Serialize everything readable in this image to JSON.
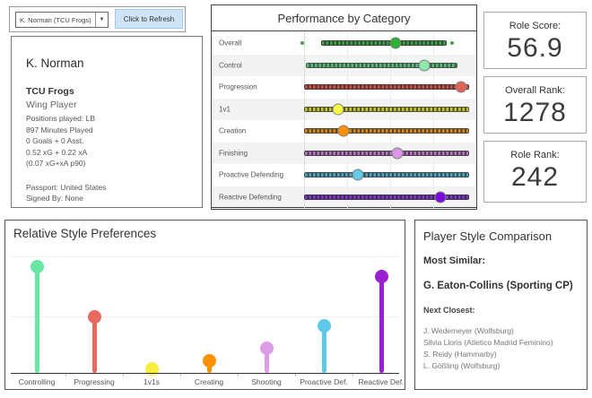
{
  "controls": {
    "player_select_value": "K. Norman (TCU Frogs)",
    "refresh_label": "Click to Refresh"
  },
  "player_card": {
    "name": "K. Norman",
    "team": "TCU Frogs",
    "role": "Wing Player",
    "details": [
      "Positions played: LB",
      "897 Minutes Played",
      "0 Goals + 0 Asst.",
      "0.52 xG + 0.22 xA",
      "(0.07 xG+xA p90)"
    ],
    "footer": [
      "Passport: United States",
      "Signed By: None"
    ]
  },
  "stats": [
    {
      "label": "Role Score:",
      "value": "56.9"
    },
    {
      "label": "Overall Rank:",
      "value": "1278"
    },
    {
      "label": "Role Rank:",
      "value": "242"
    }
  ],
  "comparison": {
    "title": "Player Style Comparison",
    "most_similar_label": "Most Similar:",
    "most_similar": "G. Eaton-Collins (Sporting CP)",
    "next_closest_label": "Next Closest:",
    "next_closest": [
      "J. Wedemeyer (Wolfsburg)",
      "Silvia Lloris (Atletico Madrid Feminino)",
      "S. Reidy (Hammarby)",
      "L. Gößling (Wolfsburg)"
    ]
  },
  "chart_data": [
    {
      "type": "scatter",
      "title": "Performance by Category",
      "subtitle": "strip plot of league distribution with highlighted player dot, x = percentile 0-100",
      "categories": [
        "Overall",
        "Control",
        "Progression",
        "1v1",
        "Creation",
        "Finishing",
        "Proactive Defending",
        "Reactive Defending"
      ],
      "values": [
        53,
        70,
        91,
        20,
        23,
        54,
        31,
        79
      ],
      "strip_ranges": [
        [
          10,
          82
        ],
        [
          1,
          88
        ],
        [
          0,
          95
        ],
        [
          0,
          95
        ],
        [
          0,
          95
        ],
        [
          0,
          95
        ],
        [
          0,
          95
        ],
        [
          0,
          95
        ]
      ],
      "overall_outliers": [
        -1,
        86
      ],
      "dot_colors": [
        "#2eb135",
        "#8ce8ad",
        "#e2635a",
        "#f8f545",
        "#ff9100",
        "#dc95e8",
        "#62c9e8",
        "#7d0be0"
      ],
      "strip_light": [
        "#44a048",
        "#5cb874",
        "#c9524a",
        "#c2c238",
        "#cc8a28",
        "#b077bb",
        "#58a2b8",
        "#7a3db3"
      ],
      "strip_dark": [
        "#2e4a2e",
        "#3c5c48",
        "#55332f",
        "#55552a",
        "#5c4322",
        "#4e3852",
        "#334e58",
        "#42265e"
      ],
      "xlim": [
        0,
        100
      ],
      "grid": true,
      "band_color": "#f3f3f3"
    },
    {
      "type": "lollipop",
      "title": "Relative Style Preferences",
      "categories": [
        "Controlling",
        "Progressing",
        "1v1s",
        "Creating",
        "Shooting",
        "Proactive Def.",
        "Reactive Def."
      ],
      "values": [
        95,
        50,
        4,
        11,
        22,
        42,
        86
      ],
      "colors": [
        "#68e6a2",
        "#e8695f",
        "#f7ee3d",
        "#ff9100",
        "#dd9be8",
        "#5ec8ea",
        "#9c1fd4"
      ],
      "ylim": [
        0,
        100
      ],
      "grid": true
    }
  ]
}
